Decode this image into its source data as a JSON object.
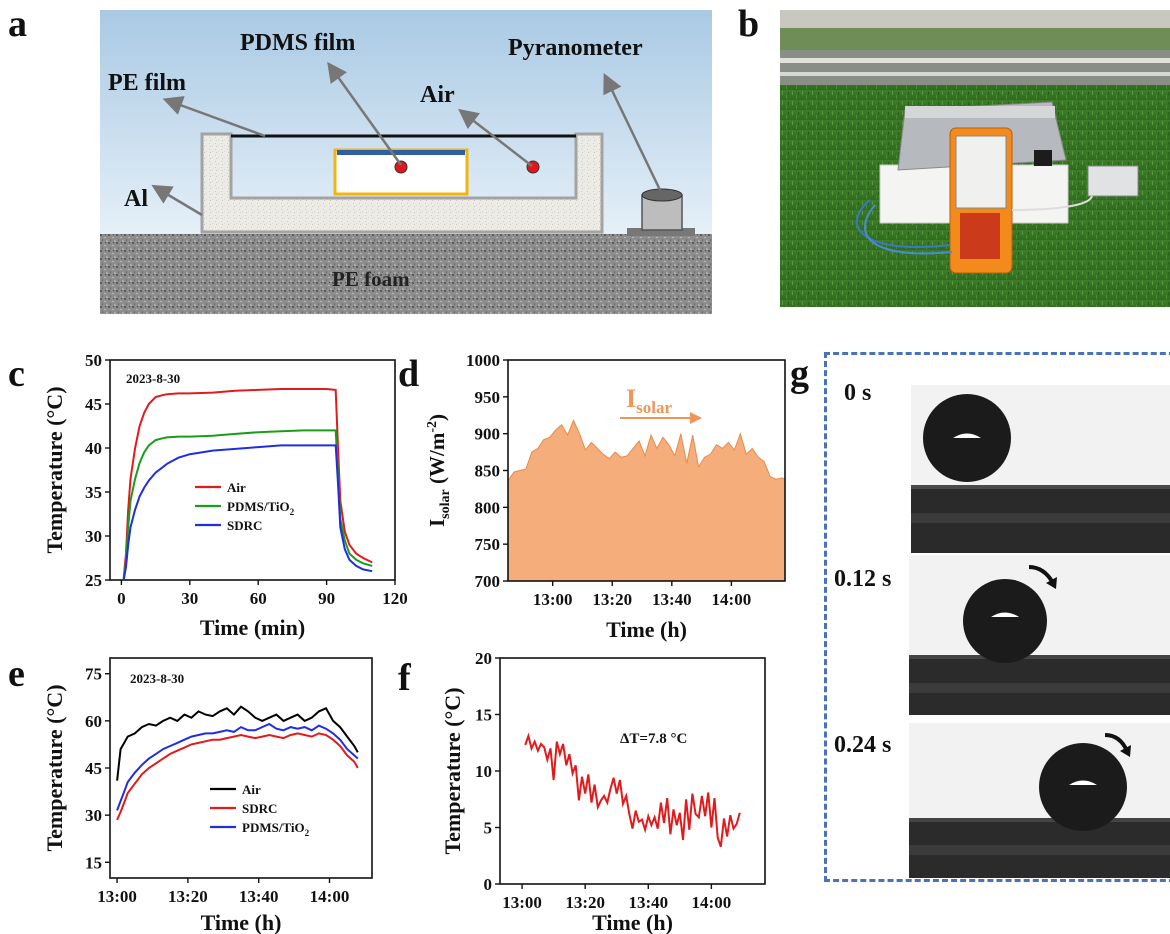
{
  "panel_labels": {
    "a": "a",
    "b": "b",
    "c": "c",
    "d": "d",
    "e": "e",
    "f": "f",
    "g": "g"
  },
  "schematic": {
    "pdms_film": "PDMS film",
    "pyranometer": "Pyranometer",
    "pe_film": "PE film",
    "air": "Air",
    "al": "Al",
    "pe_foam": "PE foam"
  },
  "colors": {
    "air": "#e31a1c",
    "pdms_tio2": "#1a9e1a",
    "sdrc": "#1f2ee0",
    "black": "#000000",
    "solar_fill": "#f4ad7b",
    "solar_text": "#f0955a",
    "dash": "#4a72b8"
  },
  "droplet": {
    "times": [
      "0 s",
      "0.12 s",
      "0.24 s"
    ]
  },
  "chart_data": [
    {
      "id": "c",
      "type": "line",
      "annotation": "2023-8-30",
      "xlabel": "Time (min)",
      "ylabel": "Temperature (°C)",
      "xlim": [
        -5,
        120
      ],
      "ylim": [
        25,
        50
      ],
      "xticks": [
        0,
        30,
        60,
        90,
        120
      ],
      "yticks": [
        25,
        30,
        35,
        40,
        45,
        50
      ],
      "legend": "center-right",
      "series": [
        {
          "name": "Air",
          "color": "#e31a1c",
          "x": [
            1,
            2,
            3,
            4,
            6,
            8,
            10,
            12,
            15,
            18,
            20,
            25,
            30,
            40,
            50,
            60,
            70,
            80,
            90,
            94,
            95,
            96,
            98,
            100,
            103,
            106,
            110
          ],
          "y": [
            25.2,
            28,
            33,
            36.5,
            40,
            42.5,
            44,
            45,
            45.8,
            46,
            46.1,
            46.2,
            46.2,
            46.3,
            46.5,
            46.6,
            46.7,
            46.7,
            46.7,
            46.6,
            40,
            34,
            30.5,
            29,
            28,
            27.5,
            27
          ]
        },
        {
          "name": "PDMS/TiO2",
          "legend_main": "PDMS/TiO",
          "legend_sub": "2",
          "color": "#1a9e1a",
          "x": [
            1,
            2,
            3,
            4,
            6,
            8,
            10,
            12,
            15,
            18,
            20,
            25,
            30,
            40,
            50,
            60,
            70,
            80,
            90,
            94,
            95,
            96,
            98,
            100,
            103,
            106,
            110
          ],
          "y": [
            25.1,
            27,
            31,
            34,
            36.5,
            38.3,
            39.5,
            40.3,
            40.9,
            41.1,
            41.2,
            41.3,
            41.3,
            41.4,
            41.6,
            41.8,
            41.9,
            42,
            42,
            42,
            37,
            32,
            29.5,
            28,
            27.3,
            26.9,
            26.6
          ]
        },
        {
          "name": "SDRC",
          "color": "#1f2ee0",
          "x": [
            1,
            2,
            3,
            4,
            6,
            8,
            10,
            12,
            15,
            18,
            20,
            25,
            30,
            40,
            50,
            60,
            70,
            80,
            90,
            94,
            95,
            96,
            98,
            100,
            103,
            106,
            110
          ],
          "y": [
            25,
            26.5,
            29,
            31,
            33,
            34.5,
            35.5,
            36.3,
            37.2,
            37.8,
            38.2,
            38.9,
            39.3,
            39.7,
            39.9,
            40.1,
            40.3,
            40.3,
            40.3,
            40.3,
            36,
            31,
            28.5,
            27.3,
            26.6,
            26.2,
            26
          ]
        }
      ]
    },
    {
      "id": "d",
      "type": "area",
      "xlabel": "Time (h)",
      "ylabel": "I",
      "ylabel_sub": "solar",
      "ylabel_rest": " (W/m",
      "ylabel_sup": "-2",
      "ylabel_end": ")",
      "annotation": "I",
      "annotation_sub": "solar",
      "xticks": [
        "13:00",
        "13:20",
        "13:40",
        "14:00"
      ],
      "xlim_min": [
        765,
        858
      ],
      "xtick_min": [
        780,
        800,
        820,
        840
      ],
      "ylim": [
        700,
        1000
      ],
      "yticks": [
        700,
        750,
        800,
        850,
        900,
        950,
        1000
      ],
      "x_min": [
        765,
        767,
        769,
        771,
        773,
        775,
        777,
        779,
        781,
        783,
        785,
        787,
        789,
        791,
        793,
        795,
        797,
        799,
        801,
        803,
        805,
        807,
        809,
        811,
        813,
        815,
        817,
        819,
        821,
        823,
        825,
        827,
        829,
        831,
        833,
        835,
        837,
        839,
        841,
        843,
        845,
        847,
        849,
        851,
        853,
        855,
        857,
        858
      ],
      "values": [
        836,
        848,
        850,
        852,
        875,
        880,
        892,
        895,
        905,
        912,
        898,
        918,
        900,
        878,
        888,
        880,
        872,
        866,
        875,
        868,
        870,
        880,
        890,
        870,
        898,
        880,
        895,
        885,
        870,
        900,
        860,
        898,
        855,
        868,
        872,
        885,
        880,
        888,
        878,
        900,
        872,
        880,
        868,
        862,
        842,
        838,
        840,
        838
      ]
    },
    {
      "id": "e",
      "type": "line",
      "annotation": "2023-8-30",
      "xlabel": "Time (h)",
      "ylabel": "Temperature (°C)",
      "xticks": [
        "13:00",
        "13:20",
        "13:40",
        "14:00"
      ],
      "xlim_min": [
        778,
        852
      ],
      "xtick_min": [
        780,
        800,
        820,
        840
      ],
      "ylim": [
        10,
        80
      ],
      "yticks": [
        15,
        30,
        45,
        60,
        75
      ],
      "legend": "lower-center",
      "x_min": [
        780,
        781,
        782,
        783,
        785,
        787,
        789,
        791,
        793,
        795,
        797,
        799,
        801,
        803,
        805,
        807,
        809,
        811,
        813,
        815,
        817,
        819,
        821,
        823,
        825,
        827,
        829,
        831,
        833,
        835,
        837,
        839,
        841,
        843,
        845,
        847,
        848
      ],
      "series": [
        {
          "name": "Air",
          "color": "#000000",
          "values": [
            41,
            51,
            53,
            55,
            56,
            58,
            59,
            58.5,
            60,
            61,
            60,
            62,
            61,
            63,
            62,
            61.5,
            63,
            64,
            62,
            64.5,
            63,
            61,
            60,
            61,
            62,
            60,
            61,
            62,
            60,
            61,
            63,
            64,
            60,
            58,
            55,
            52,
            50
          ]
        },
        {
          "name": "SDRC",
          "color": "#e31a1c",
          "values": [
            28.5,
            31,
            34,
            37,
            40,
            43,
            45,
            46.5,
            48,
            49.5,
            50.5,
            51.5,
            52.5,
            53,
            53.5,
            54,
            54,
            54.5,
            55,
            55.5,
            55,
            54.5,
            55,
            55.5,
            55,
            54.5,
            55.5,
            56,
            55.5,
            55,
            56,
            55.5,
            54,
            52,
            49,
            47,
            45
          ]
        },
        {
          "name": "PDMS/TiO2",
          "legend_main": "PDMS/TiO",
          "legend_sub": "2",
          "color": "#1f2ee0",
          "values": [
            31.5,
            34.5,
            37.5,
            40.5,
            43.5,
            46,
            48,
            49.5,
            51,
            52,
            53,
            54,
            55,
            55.5,
            56,
            56,
            56.5,
            57,
            56.5,
            58,
            57,
            57,
            58,
            59,
            57.5,
            57,
            58,
            57.5,
            58,
            57,
            58.5,
            57.5,
            56,
            54,
            51,
            49,
            48
          ]
        }
      ]
    },
    {
      "id": "f",
      "type": "line",
      "annotation": "ΔT=7.8 °C",
      "xlabel": "Time (h)",
      "ylabel": "Temperature (°C)",
      "xticks": [
        "13:00",
        "13:20",
        "13:40",
        "14:00"
      ],
      "xlim_min": [
        773,
        857
      ],
      "xtick_min": [
        780,
        800,
        820,
        840
      ],
      "ylim": [
        0,
        20
      ],
      "yticks": [
        0,
        5,
        10,
        15,
        20
      ],
      "color": "#e31a1c",
      "x_min": [
        781,
        782,
        783,
        784,
        785,
        786,
        787,
        788,
        789,
        790,
        791,
        792,
        793,
        794,
        795,
        796,
        797,
        798,
        799,
        800,
        801,
        802,
        803,
        804,
        805,
        806,
        807,
        808,
        809,
        810,
        811,
        812,
        813,
        814,
        815,
        816,
        817,
        818,
        819,
        820,
        821,
        822,
        823,
        824,
        825,
        826,
        827,
        828,
        829,
        830,
        831,
        832,
        833,
        834,
        835,
        836,
        837,
        838,
        839,
        840,
        841,
        842,
        843,
        844,
        845,
        846,
        847,
        848,
        849
      ],
      "values": [
        12.3,
        13.1,
        12,
        12.6,
        11.8,
        12.4,
        12.1,
        11,
        12,
        9.2,
        12.6,
        11.5,
        12.4,
        10.5,
        11.5,
        9.8,
        10.5,
        7.4,
        9.5,
        8,
        9.7,
        7.2,
        8.8,
        6.8,
        7.4,
        7.8,
        7.2,
        8.4,
        9.4,
        8,
        9.2,
        7.1,
        7.8,
        6.2,
        4.9,
        6.5,
        5.5,
        5.7,
        4.8,
        6,
        5.2,
        5.9,
        4.9,
        7.2,
        5.4,
        7.6,
        4.4,
        6.6,
        5.2,
        6.3,
        3.9,
        7.5,
        4.8,
        8,
        6.2,
        5.9,
        7.8,
        6,
        8.1,
        5,
        7.6,
        4.1,
        3.3,
        5.8,
        4.2,
        6.1,
        4.9,
        5.3,
        6.3
      ]
    }
  ]
}
